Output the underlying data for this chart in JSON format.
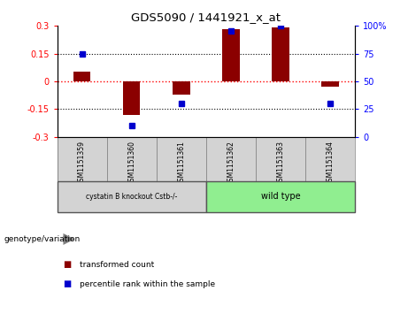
{
  "title": "GDS5090 / 1441921_x_at",
  "samples": [
    "GSM1151359",
    "GSM1151360",
    "GSM1151361",
    "GSM1151362",
    "GSM1151363",
    "GSM1151364"
  ],
  "transformed_counts": [
    0.05,
    -0.18,
    -0.07,
    0.28,
    0.29,
    -0.03
  ],
  "percentile_ranks": [
    75,
    10,
    30,
    95,
    100,
    30
  ],
  "bar_color": "#8B0000",
  "dot_color": "#0000CD",
  "ylim_left": [
    -0.3,
    0.3
  ],
  "ylim_right": [
    0,
    100
  ],
  "yticks_left": [
    -0.3,
    -0.15,
    0,
    0.15,
    0.3
  ],
  "yticks_right": [
    0,
    25,
    50,
    75,
    100
  ],
  "background_color": "#ffffff",
  "group1_label": "cystatin B knockout Cstb-/-",
  "group2_label": "wild type",
  "group1_color": "#d3d3d3",
  "group2_color": "#90EE90",
  "sample_box_color": "#d3d3d3",
  "genotype_label": "genotype/variation",
  "legend_red": "transformed count",
  "legend_blue": "percentile rank within the sample",
  "bar_width": 0.35
}
